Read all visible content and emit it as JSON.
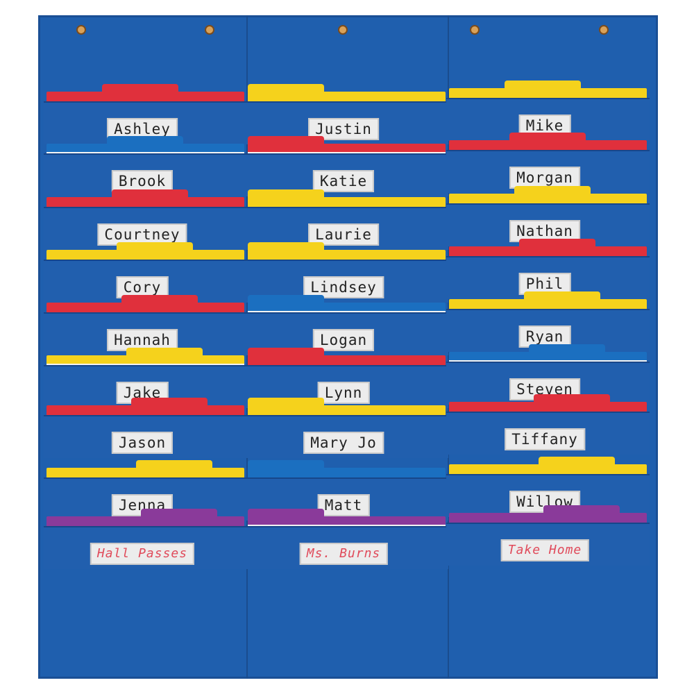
{
  "colors": {
    "chart": "#1f5fae",
    "red": "#e0303c",
    "yellow": "#f5d21c",
    "blue": "#1b6fc0",
    "purple": "#8a3a9a"
  },
  "columns": [
    {
      "pockets": [
        {
          "name": "Ashley",
          "folder": "red"
        },
        {
          "name": "Brook",
          "folder": "blue",
          "stripe": true
        },
        {
          "name": "Courtney",
          "folder": "red"
        },
        {
          "name": "Cory",
          "folder": "yellow"
        },
        {
          "name": "Hannah",
          "folder": "red"
        },
        {
          "name": "Jake",
          "folder": "yellow",
          "stripe": true
        },
        {
          "name": "Jason",
          "folder": "red"
        },
        {
          "name": "Jenna",
          "folder": "yellow"
        },
        {
          "name": "Hall Passes",
          "folder": "purple",
          "red_text": true
        }
      ]
    },
    {
      "pockets": [
        {
          "name": "Justin",
          "folder": "yellow"
        },
        {
          "name": "Katie",
          "folder": "red",
          "stripe": true
        },
        {
          "name": "Laurie",
          "folder": "yellow"
        },
        {
          "name": "Lindsey",
          "folder": "yellow"
        },
        {
          "name": "Logan",
          "folder": "blue",
          "stripe": true
        },
        {
          "name": "Lynn",
          "folder": "red"
        },
        {
          "name": "Mary Jo",
          "folder": "yellow"
        },
        {
          "name": "Matt",
          "folder": "blue"
        },
        {
          "name": "Ms. Burns",
          "folder": "purple",
          "stripe": true,
          "red_text": true
        }
      ]
    },
    {
      "pockets": [
        {
          "name": "Mike",
          "folder": "yellow"
        },
        {
          "name": "Morgan",
          "folder": "red"
        },
        {
          "name": "Nathan",
          "folder": "yellow"
        },
        {
          "name": "Phil",
          "folder": "red"
        },
        {
          "name": "Ryan",
          "folder": "yellow"
        },
        {
          "name": "Steven",
          "folder": "blue",
          "stripe": true
        },
        {
          "name": "Tiffany",
          "folder": "red"
        },
        {
          "name": "Willow",
          "folder": "yellow"
        },
        {
          "name": "Take Home",
          "folder": "purple",
          "red_text": true
        }
      ]
    }
  ]
}
